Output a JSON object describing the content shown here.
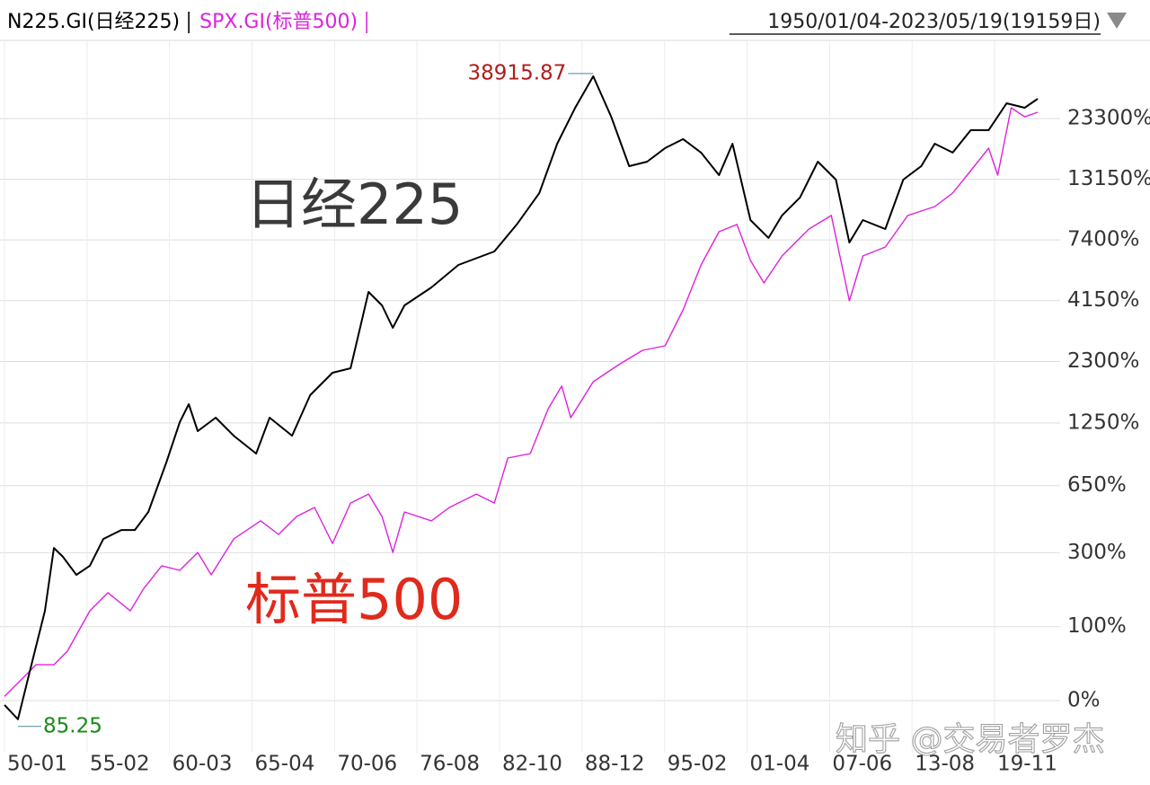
{
  "chart_data": {
    "type": "line",
    "date_range": "1950/01/04-2023/05/19(19159日)",
    "watermark": "知乎 @交易者罗杰",
    "yscale": "log",
    "grid": true,
    "xlim": [
      0,
      19159
    ],
    "xticks": [
      {
        "value": 0,
        "label": "50-01"
      },
      {
        "value": 1530,
        "label": "55-02"
      },
      {
        "value": 3060,
        "label": "60-03"
      },
      {
        "value": 4590,
        "label": "65-04"
      },
      {
        "value": 6120,
        "label": "70-06"
      },
      {
        "value": 7650,
        "label": "76-08"
      },
      {
        "value": 9180,
        "label": "82-10"
      },
      {
        "value": 10710,
        "label": "88-12"
      },
      {
        "value": 12240,
        "label": "95-02"
      },
      {
        "value": 13770,
        "label": "01-04"
      },
      {
        "value": 15300,
        "label": "07-06"
      },
      {
        "value": 16830,
        "label": "13-08"
      },
      {
        "value": 18360,
        "label": "19-11"
      }
    ],
    "ylim": [
      -38.6,
      48560
    ],
    "yticks": [
      {
        "value": 0,
        "label": "0%"
      },
      {
        "value": 100,
        "label": "100%"
      },
      {
        "value": 300,
        "label": "300%"
      },
      {
        "value": 650,
        "label": "650%"
      },
      {
        "value": 1250,
        "label": "1250%"
      },
      {
        "value": 2300,
        "label": "2300%"
      },
      {
        "value": 4150,
        "label": "4150%"
      },
      {
        "value": 7400,
        "label": "7400%"
      },
      {
        "value": 13150,
        "label": "13150%"
      },
      {
        "value": 23300,
        "label": "23300%"
      }
    ],
    "annotations": [
      {
        "text": "38915.87",
        "color": "#b01c1c"
      },
      {
        "text": "85.25",
        "color": "#1a8a1a"
      }
    ],
    "series": [
      {
        "name": "N225.GI(日经225)",
        "color": "#000000",
        "label": "日经225",
        "label_color": "#3a3a3a",
        "x": [
          0,
          250,
          500,
          750,
          917,
          1083,
          1333,
          1583,
          1833,
          2167,
          2417,
          2667,
          3000,
          3250,
          3417,
          3583,
          3917,
          4250,
          4667,
          4917,
          5333,
          5667,
          6083,
          6417,
          6750,
          7000,
          7200,
          7417,
          7917,
          8417,
          9083,
          9500,
          9917,
          10250,
          10583,
          10917,
          11250,
          11583,
          11917,
          12250,
          12583,
          12917,
          13250,
          13500,
          13833,
          14167,
          14417,
          14750,
          15083,
          15417,
          15667,
          15917,
          16333,
          16667,
          17000,
          17250,
          17583,
          17917,
          18250,
          18583,
          18917,
          19159
        ],
        "values": [
          -4,
          -16,
          40,
          132,
          318,
          285,
          225,
          254,
          355,
          395,
          395,
          486,
          831,
          1260,
          1509,
          1150,
          1318,
          1098,
          913,
          1318,
          1098,
          1650,
          2060,
          2153,
          4509,
          3962,
          3192,
          3962,
          4708,
          5832,
          6632,
          8570,
          11540,
          18390,
          25790,
          34690,
          23700,
          14880,
          15520,
          17630,
          19190,
          16900,
          13670,
          18390,
          8940,
          7540,
          9330,
          11060,
          15520,
          13100,
          7220,
          8940,
          8210,
          13100,
          14880,
          18390,
          16900,
          20880,
          20880,
          26900,
          25790,
          28060
        ]
      },
      {
        "name": "SPX.GI(标普500)",
        "color": "#dd22dd",
        "label": "标普500",
        "label_color": "#e02a1c",
        "x": [
          0,
          250,
          583,
          917,
          1167,
          1583,
          1917,
          2333,
          2583,
          2917,
          3250,
          3583,
          3833,
          4250,
          4750,
          5083,
          5417,
          5750,
          6083,
          6417,
          6750,
          7000,
          7200,
          7417,
          7917,
          8250,
          8750,
          9083,
          9333,
          9750,
          10083,
          10333,
          10500,
          10917,
          11417,
          11833,
          12250,
          12583,
          12917,
          13250,
          13583,
          13833,
          14083,
          14417,
          14917,
          15333,
          15667,
          15917,
          16333,
          16750,
          17250,
          17583,
          17917,
          18250,
          18417,
          18667,
          18917,
          19159
        ],
        "values": [
          4,
          18,
          40,
          40,
          59,
          132,
          175,
          132,
          186,
          254,
          239,
          301,
          225,
          355,
          439,
          375,
          462,
          511,
          336,
          537,
          593,
          462,
          301,
          486,
          439,
          511,
          593,
          537,
          871,
          913,
          1443,
          1805,
          1318,
          1886,
          2250,
          2566,
          2682,
          3794,
          5832,
          8000,
          8570,
          6087,
          4914,
          6353,
          8210,
          9330,
          4136,
          6353,
          6920,
          9330,
          10150,
          11540,
          14260,
          17630,
          13670,
          25790,
          23700,
          24720
        ]
      }
    ]
  }
}
